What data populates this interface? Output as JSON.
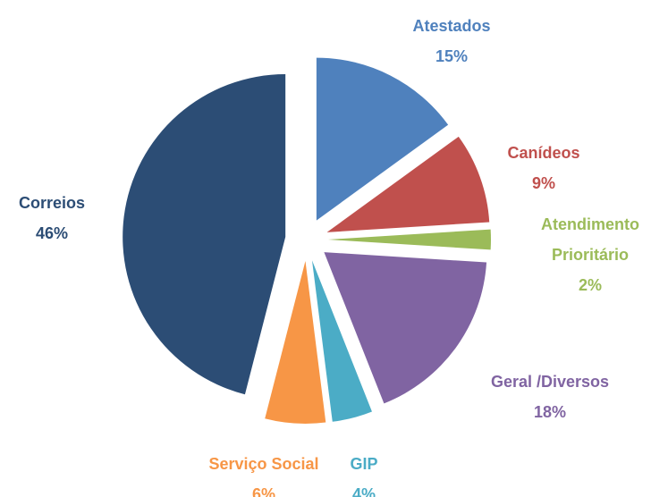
{
  "chart_data": {
    "type": "pie",
    "categories": [
      "Atestados",
      "Canídeos",
      "Atendimento Prioritário",
      "Geral /Diversos",
      "GIP",
      "Serviço Social",
      "Correios"
    ],
    "values": [
      15,
      9,
      2,
      18,
      4,
      6,
      46
    ],
    "value_labels": [
      "15%",
      "9%",
      "2%",
      "18%",
      "4%",
      "6%",
      "46%"
    ],
    "colors": [
      "#4f81bd",
      "#c0504d",
      "#9bbb59",
      "#8064a2",
      "#4bacc6",
      "#f79646",
      "#2c4d75"
    ],
    "exploded": true
  }
}
